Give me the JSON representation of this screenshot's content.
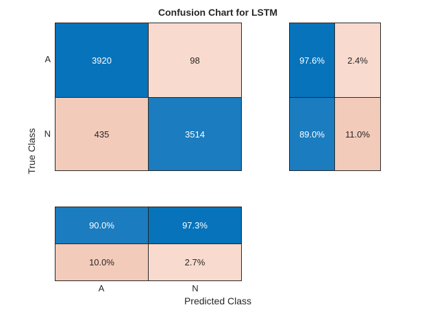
{
  "title": "Confusion Chart for LSTM",
  "chart_data": {
    "type": "heatmap",
    "subtype": "confusion-matrix",
    "title": "Confusion Chart for LSTM",
    "xlabel": "Predicted Class",
    "ylabel": "True Class",
    "classes": [
      "A",
      "N"
    ],
    "matrix": [
      [
        3920,
        98
      ],
      [
        435,
        3514
      ]
    ],
    "row_summary_pct": [
      [
        97.6,
        2.4
      ],
      [
        89.0,
        11.0
      ]
    ],
    "col_summary_pct": [
      [
        90.0,
        97.3
      ],
      [
        10.0,
        2.7
      ]
    ]
  },
  "cells": {
    "matrix": [
      [
        "3920",
        "98"
      ],
      [
        "435",
        "3514"
      ]
    ],
    "row_summary": [
      [
        "97.6%",
        "2.4%"
      ],
      [
        "89.0%",
        "11.0%"
      ]
    ],
    "col_summary": [
      [
        "90.0%",
        "97.3%"
      ],
      [
        "10.0%",
        "2.7%"
      ]
    ]
  },
  "colors": {
    "diagonal_blue": "#0773BB",
    "diagonal_blue_light": "#1B7CBF",
    "off_diagonal_peach_light": "#F8DBCE",
    "off_diagonal_peach": "#F3CBBA",
    "grid_border": "#262626",
    "text_dark": "#262626",
    "text_on_blue": "#FFFFFF",
    "background": "#FFFFFF"
  }
}
